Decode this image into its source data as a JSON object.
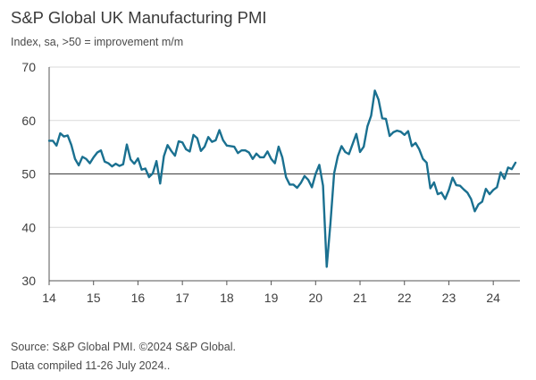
{
  "header": {
    "title": "S&P Global UK Manufacturing PMI",
    "subtitle": "Index, sa, >50 = improvement m/m"
  },
  "footer": {
    "source": "Source: S&P Global PMI. ©2024 S&P Global.",
    "compiled": "Data compiled 11-26 July 2024.."
  },
  "colors": {
    "line": "#1a7090",
    "axis": "#555555",
    "grid": "#d9d9d9"
  },
  "chart_data": {
    "type": "line",
    "title": "S&P Global UK Manufacturing PMI",
    "subtitle": "Index, sa, >50 = improvement m/m",
    "xlabel": "",
    "ylabel": "",
    "xlim": [
      2014.0,
      2024.6
    ],
    "ylim": [
      30,
      70
    ],
    "yticks": [
      30,
      40,
      50,
      60,
      70
    ],
    "xticks": [
      {
        "value": 2014,
        "label": "14"
      },
      {
        "value": 2015,
        "label": "15"
      },
      {
        "value": 2016,
        "label": "16"
      },
      {
        "value": 2017,
        "label": "17"
      },
      {
        "value": 2018,
        "label": "18"
      },
      {
        "value": 2019,
        "label": "19"
      },
      {
        "value": 2020,
        "label": "20"
      },
      {
        "value": 2021,
        "label": "21"
      },
      {
        "value": 2022,
        "label": "22"
      },
      {
        "value": 2023,
        "label": "23"
      },
      {
        "value": 2024,
        "label": "24"
      }
    ],
    "reference_line": 50,
    "grid": "horizontal",
    "legend": "none",
    "series": [
      {
        "name": "",
        "start": "2014-01",
        "frequency": "monthly",
        "values": [
          56.2,
          56.2,
          55.3,
          57.6,
          57.0,
          57.2,
          55.4,
          52.8,
          51.6,
          53.2,
          52.8,
          52.0,
          53.1,
          54.0,
          54.4,
          52.3,
          52.0,
          51.4,
          51.9,
          51.5,
          51.8,
          55.5,
          52.7,
          51.9,
          52.9,
          50.8,
          51.0,
          49.4,
          50.1,
          52.4,
          48.2,
          53.3,
          55.4,
          54.3,
          53.4,
          56.1,
          55.9,
          54.6,
          54.2,
          57.3,
          56.7,
          54.3,
          55.1,
          56.9,
          56.0,
          56.3,
          58.2,
          56.3,
          55.3,
          55.2,
          55.1,
          53.9,
          54.4,
          54.4,
          54.0,
          52.8,
          53.8,
          53.1,
          53.1,
          54.2,
          52.8,
          52.0,
          55.1,
          53.1,
          49.4,
          48.0,
          48.0,
          47.4,
          48.3,
          49.6,
          48.9,
          47.5,
          50.0,
          51.7,
          47.8,
          32.6,
          40.7,
          50.1,
          53.3,
          55.2,
          54.1,
          53.7,
          55.6,
          57.5,
          54.1,
          55.1,
          58.9,
          60.9,
          65.6,
          63.9,
          60.4,
          60.3,
          57.1,
          57.8,
          58.1,
          57.9,
          57.3,
          58.0,
          55.2,
          55.8,
          54.6,
          52.8,
          52.1,
          47.3,
          48.4,
          46.2,
          46.5,
          45.3,
          47.0,
          49.3,
          47.9,
          47.8,
          47.1,
          46.5,
          45.3,
          43.0,
          44.3,
          44.8,
          47.2,
          46.2,
          47.0,
          47.5,
          50.3,
          49.1,
          51.2,
          50.9,
          52.1
        ]
      }
    ]
  }
}
